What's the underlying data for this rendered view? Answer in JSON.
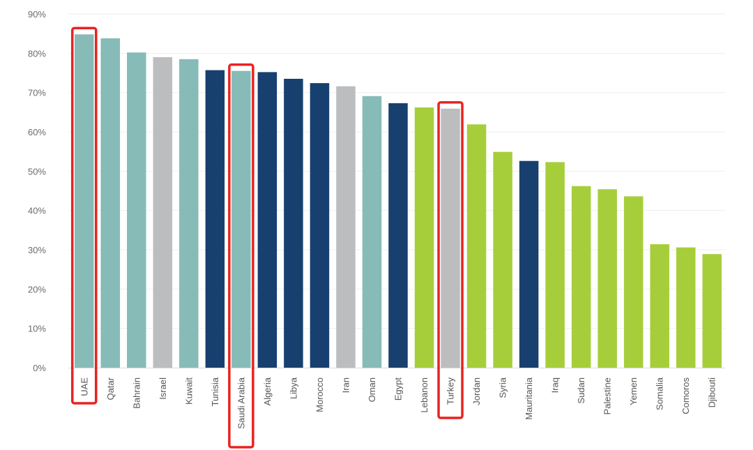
{
  "chart_data": {
    "type": "bar",
    "title": "",
    "xlabel": "",
    "ylabel": "",
    "ylim": [
      0,
      90
    ],
    "y_tick_values": [
      0,
      10,
      20,
      30,
      40,
      50,
      60,
      70,
      80,
      90
    ],
    "y_tick_labels": [
      "0%",
      "10%",
      "20%",
      "30%",
      "40%",
      "50%",
      "60%",
      "70%",
      "80%",
      "90%"
    ],
    "grid": "horizontal",
    "legend": "none",
    "categories": [
      "UAE",
      "Qatar",
      "Bahrain",
      "Israel",
      "Kuwait",
      "Tunisia",
      "Saudi Arabia",
      "Algeria",
      "Libya",
      "Morocco",
      "Iran",
      "Oman",
      "Egypt",
      "Lebanon",
      "Turkey",
      "Jordan",
      "Syria",
      "Mauritania",
      "Iraq",
      "Sudan",
      "Palestine",
      "Yemen",
      "Somalia",
      "Comoros",
      "Djibouti"
    ],
    "values": [
      84.8,
      83.8,
      80.2,
      79.0,
      78.5,
      75.7,
      75.5,
      75.2,
      73.5,
      72.4,
      71.6,
      69.1,
      67.3,
      66.2,
      65.9,
      61.9,
      54.9,
      52.6,
      52.3,
      46.2,
      45.4,
      43.6,
      31.4,
      30.6,
      28.9
    ],
    "bar_color_groups": [
      "teal",
      "teal",
      "teal",
      "gray",
      "teal",
      "navy",
      "teal",
      "navy",
      "navy",
      "navy",
      "gray",
      "teal",
      "navy",
      "green",
      "gray",
      "green",
      "green",
      "navy",
      "green",
      "green",
      "green",
      "green",
      "green",
      "green",
      "green"
    ],
    "colors": {
      "teal": "#86bbb8",
      "gray": "#bcbdbf",
      "navy": "#17406f",
      "green": "#a6ce3a",
      "highlight": "#e8231f",
      "grid": "#eeeeee",
      "axis": "#d9d9d9"
    },
    "highlighted_categories": [
      "UAE",
      "Saudi Arabia",
      "Turkey"
    ]
  }
}
